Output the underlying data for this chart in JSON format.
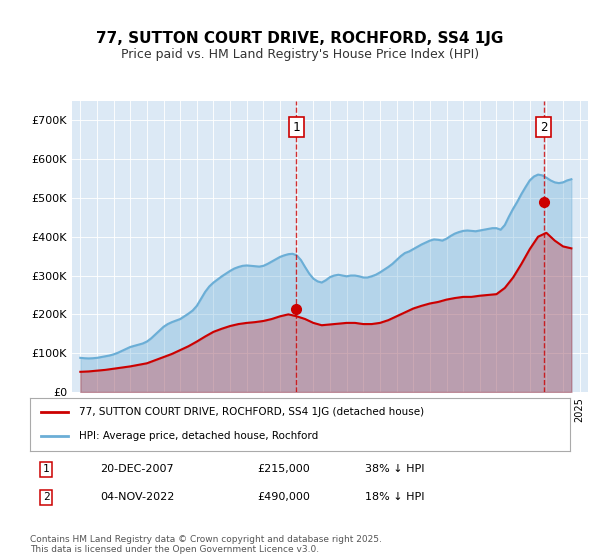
{
  "title": "77, SUTTON COURT DRIVE, ROCHFORD, SS4 1JG",
  "subtitle": "Price paid vs. HM Land Registry's House Price Index (HPI)",
  "bg_color": "#dce9f5",
  "plot_bg_color": "#dce9f5",
  "hpi_color": "#6baed6",
  "price_color": "#cc0000",
  "vline_color": "#cc0000",
  "ylim": [
    0,
    750000
  ],
  "yticks": [
    0,
    100000,
    200000,
    300000,
    400000,
    500000,
    600000,
    700000
  ],
  "ytick_labels": [
    "£0",
    "£100K",
    "£200K",
    "£300K",
    "£400K",
    "£500K",
    "£600K",
    "£700K"
  ],
  "sale1_date_num": 2007.97,
  "sale1_price": 215000,
  "sale1_label": "1",
  "sale2_date_num": 2022.84,
  "sale2_price": 490000,
  "sale2_label": "2",
  "legend_line1": "77, SUTTON COURT DRIVE, ROCHFORD, SS4 1JG (detached house)",
  "legend_line2": "HPI: Average price, detached house, Rochford",
  "anno1_label": "1",
  "anno1_date": "20-DEC-2007",
  "anno1_price": "£215,000",
  "anno1_pct": "38% ↓ HPI",
  "anno2_label": "2",
  "anno2_date": "04-NOV-2022",
  "anno2_price": "£490,000",
  "anno2_pct": "18% ↓ HPI",
  "footer": "Contains HM Land Registry data © Crown copyright and database right 2025.\nThis data is licensed under the Open Government Licence v3.0.",
  "hpi_years": [
    1995.0,
    1995.25,
    1995.5,
    1995.75,
    1996.0,
    1996.25,
    1996.5,
    1996.75,
    1997.0,
    1997.25,
    1997.5,
    1997.75,
    1998.0,
    1998.25,
    1998.5,
    1998.75,
    1999.0,
    1999.25,
    1999.5,
    1999.75,
    2000.0,
    2000.25,
    2000.5,
    2000.75,
    2001.0,
    2001.25,
    2001.5,
    2001.75,
    2002.0,
    2002.25,
    2002.5,
    2002.75,
    2003.0,
    2003.25,
    2003.5,
    2003.75,
    2004.0,
    2004.25,
    2004.5,
    2004.75,
    2005.0,
    2005.25,
    2005.5,
    2005.75,
    2006.0,
    2006.25,
    2006.5,
    2006.75,
    2007.0,
    2007.25,
    2007.5,
    2007.75,
    2008.0,
    2008.25,
    2008.5,
    2008.75,
    2009.0,
    2009.25,
    2009.5,
    2009.75,
    2010.0,
    2010.25,
    2010.5,
    2010.75,
    2011.0,
    2011.25,
    2011.5,
    2011.75,
    2012.0,
    2012.25,
    2012.5,
    2012.75,
    2013.0,
    2013.25,
    2013.5,
    2013.75,
    2014.0,
    2014.25,
    2014.5,
    2014.75,
    2015.0,
    2015.25,
    2015.5,
    2015.75,
    2016.0,
    2016.25,
    2016.5,
    2016.75,
    2017.0,
    2017.25,
    2017.5,
    2017.75,
    2018.0,
    2018.25,
    2018.5,
    2018.75,
    2019.0,
    2019.25,
    2019.5,
    2019.75,
    2020.0,
    2020.25,
    2020.5,
    2020.75,
    2021.0,
    2021.25,
    2021.5,
    2021.75,
    2022.0,
    2022.25,
    2022.5,
    2022.75,
    2023.0,
    2023.25,
    2023.5,
    2023.75,
    2024.0,
    2024.25,
    2024.5
  ],
  "hpi_values": [
    88000,
    87000,
    86500,
    87000,
    88000,
    90000,
    92000,
    94000,
    97000,
    101000,
    106000,
    111000,
    116000,
    119000,
    122000,
    125000,
    130000,
    138000,
    148000,
    158000,
    168000,
    175000,
    180000,
    184000,
    188000,
    195000,
    202000,
    210000,
    222000,
    240000,
    258000,
    272000,
    282000,
    290000,
    298000,
    305000,
    312000,
    318000,
    322000,
    325000,
    326000,
    325000,
    324000,
    323000,
    325000,
    330000,
    336000,
    342000,
    348000,
    352000,
    355000,
    356000,
    352000,
    340000,
    322000,
    305000,
    292000,
    285000,
    282000,
    288000,
    296000,
    300000,
    302000,
    300000,
    298000,
    300000,
    300000,
    298000,
    295000,
    295000,
    298000,
    302000,
    308000,
    315000,
    322000,
    330000,
    340000,
    350000,
    358000,
    362000,
    368000,
    374000,
    380000,
    385000,
    390000,
    393000,
    392000,
    390000,
    395000,
    402000,
    408000,
    412000,
    415000,
    416000,
    415000,
    414000,
    416000,
    418000,
    420000,
    422000,
    422000,
    418000,
    430000,
    452000,
    472000,
    490000,
    510000,
    528000,
    545000,
    555000,
    560000,
    558000,
    552000,
    545000,
    540000,
    538000,
    540000,
    545000,
    548000
  ],
  "price_years": [
    1995.0,
    1995.5,
    1996.0,
    1996.5,
    1997.0,
    1997.5,
    1998.0,
    1998.5,
    1999.0,
    1999.5,
    2000.0,
    2000.5,
    2001.0,
    2001.5,
    2002.0,
    2002.5,
    2003.0,
    2003.5,
    2004.0,
    2004.5,
    2005.0,
    2005.5,
    2006.0,
    2006.5,
    2007.0,
    2007.5,
    2008.0,
    2008.5,
    2009.0,
    2009.5,
    2010.0,
    2010.5,
    2011.0,
    2011.5,
    2012.0,
    2012.5,
    2013.0,
    2013.5,
    2014.0,
    2014.5,
    2015.0,
    2015.5,
    2016.0,
    2016.5,
    2017.0,
    2017.5,
    2018.0,
    2018.5,
    2019.0,
    2019.5,
    2020.0,
    2020.5,
    2021.0,
    2021.5,
    2022.0,
    2022.5,
    2023.0,
    2023.5,
    2024.0,
    2024.5
  ],
  "price_values": [
    52000,
    53000,
    55000,
    57000,
    60000,
    63000,
    66000,
    70000,
    74000,
    82000,
    90000,
    98000,
    108000,
    118000,
    130000,
    143000,
    155000,
    163000,
    170000,
    175000,
    178000,
    180000,
    183000,
    188000,
    195000,
    200000,
    195000,
    188000,
    178000,
    172000,
    174000,
    176000,
    178000,
    178000,
    175000,
    175000,
    178000,
    185000,
    195000,
    205000,
    215000,
    222000,
    228000,
    232000,
    238000,
    242000,
    245000,
    245000,
    248000,
    250000,
    252000,
    268000,
    295000,
    330000,
    368000,
    400000,
    410000,
    390000,
    375000,
    370000
  ]
}
